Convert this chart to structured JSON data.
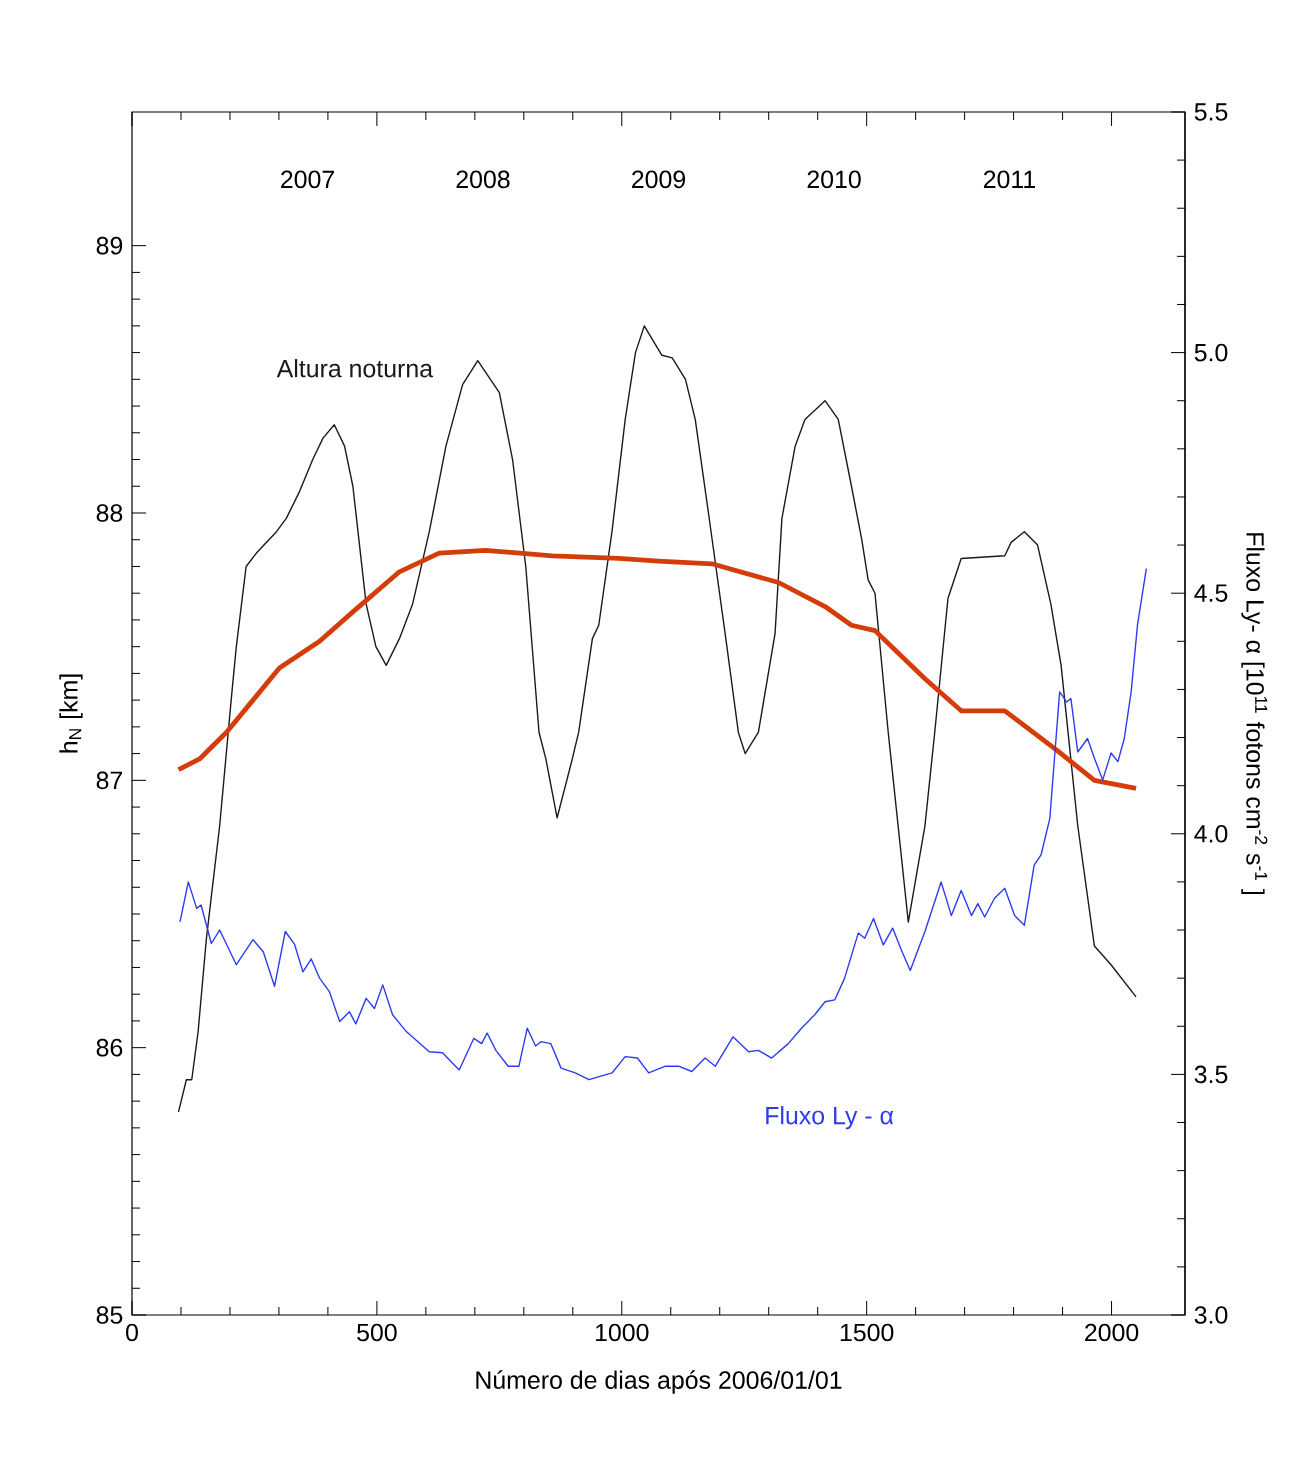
{
  "chart_data": {
    "type": "line",
    "xlabel": "Número de dias após 2006/01/01",
    "ylabel": "h$_{N}$ [km]",
    "y2label": "Fluxo Ly- α [10$^{11}$ fotons cm$^{-2}$ s$^{-1}$ ]",
    "xlim": [
      0,
      2150
    ],
    "xticks": [
      0,
      500,
      1000,
      1500,
      2000
    ],
    "ylim": [
      85,
      89.5
    ],
    "yticks": [
      85,
      86,
      87,
      88,
      89
    ],
    "y2lim": [
      3,
      5.5
    ],
    "y2ticks": [
      {
        "value": 3,
        "label": "3.0"
      },
      {
        "value": 3.5,
        "label": "3.5"
      },
      {
        "value": 4,
        "label": "4.0"
      },
      {
        "value": 4.5,
        "label": "4.5"
      },
      {
        "value": 5,
        "label": "5.0"
      },
      {
        "value": 5.5,
        "label": "5.5"
      }
    ],
    "grid": false,
    "annotations": [
      "2007",
      "2008",
      "2009",
      "2010",
      "2011"
    ],
    "series": [
      {
        "name": "Altura noturna",
        "color": "#1a1a1a",
        "x": [
          95,
          111,
          122,
          135,
          152,
          179,
          204,
          213,
          233,
          254,
          295,
          315,
          342,
          369,
          390,
          413,
          434,
          451,
          478,
          498,
          519,
          546,
          573,
          607,
          641,
          675,
          706,
          750,
          777,
          804,
          831,
          845,
          868,
          899,
          912,
          940,
          953,
          980,
          1007,
          1028,
          1046,
          1062,
          1082,
          1103,
          1130,
          1150,
          1177,
          1211,
          1238,
          1252,
          1279,
          1313,
          1327,
          1354,
          1374,
          1415,
          1442,
          1469,
          1490,
          1503,
          1517,
          1544,
          1585,
          1619,
          1639,
          1666,
          1693,
          1782,
          1795,
          1822,
          1849,
          1876,
          1897,
          1931,
          1965,
          1999,
          2050
        ],
        "values": [
          85.76,
          85.88,
          85.88,
          86.06,
          86.41,
          86.83,
          87.33,
          87.5,
          87.8,
          87.85,
          87.93,
          87.98,
          88.08,
          88.2,
          88.28,
          88.33,
          88.25,
          88.1,
          87.66,
          87.5,
          87.43,
          87.53,
          87.66,
          87.93,
          88.25,
          88.48,
          88.57,
          88.45,
          88.2,
          87.8,
          87.18,
          87.08,
          86.86,
          87.08,
          87.18,
          87.53,
          87.58,
          87.93,
          88.35,
          88.6,
          88.7,
          88.65,
          88.59,
          88.58,
          88.5,
          88.35,
          88.0,
          87.55,
          87.18,
          87.1,
          87.18,
          87.55,
          87.98,
          88.25,
          88.35,
          88.42,
          88.35,
          88.1,
          87.9,
          87.75,
          87.7,
          87.18,
          86.47,
          86.83,
          87.18,
          87.68,
          87.83,
          87.84,
          87.89,
          87.93,
          87.88,
          87.66,
          87.43,
          86.83,
          86.38,
          86.31,
          86.19
        ]
      },
      {
        "color": "#d43c0a",
        "x": [
          95,
          138,
          193,
          247,
          301,
          383,
          451,
          546,
          627,
          722,
          858,
          994,
          1075,
          1184,
          1320,
          1415,
          1469,
          1517,
          1619,
          1693,
          1782,
          1890,
          1965,
          2050
        ],
        "values": [
          87.04,
          87.08,
          87.18,
          87.3,
          87.42,
          87.52,
          87.63,
          87.78,
          87.85,
          87.86,
          87.84,
          87.83,
          87.82,
          87.81,
          87.74,
          87.65,
          87.58,
          87.56,
          87.38,
          87.26,
          87.26,
          87.11,
          87.0,
          86.97
        ]
      },
      {
        "name": "Fluxo Ly - α",
        "color": "#2d3cf0",
        "axis": "y2",
        "x": [
          98,
          115,
          132,
          141,
          162,
          179,
          213,
          247,
          268,
          291,
          313,
          332,
          349,
          366,
          383,
          403,
          424,
          444,
          457,
          478,
          495,
          512,
          532,
          560,
          607,
          634,
          668,
          698,
          714,
          725,
          743,
          768,
          790,
          807,
          824,
          835,
          855,
          876,
          905,
          933,
          980,
          1007,
          1032,
          1055,
          1089,
          1116,
          1143,
          1170,
          1191,
          1227,
          1259,
          1279,
          1306,
          1340,
          1367,
          1394,
          1415,
          1435,
          1455,
          1483,
          1496,
          1514,
          1534,
          1553,
          1571,
          1589,
          1619,
          1652,
          1673,
          1693,
          1714,
          1727,
          1741,
          1761,
          1782,
          1802,
          1822,
          1842,
          1856,
          1874,
          1894,
          1908,
          1917,
          1931,
          1951,
          1965,
          1982,
          1999,
          2013,
          2026,
          2040,
          2053,
          2071
        ],
        "values": [
          3.817,
          3.9,
          3.845,
          3.852,
          3.772,
          3.8,
          3.728,
          3.78,
          3.755,
          3.683,
          3.797,
          3.77,
          3.713,
          3.74,
          3.7,
          3.672,
          3.61,
          3.63,
          3.605,
          3.658,
          3.637,
          3.686,
          3.624,
          3.589,
          3.547,
          3.545,
          3.509,
          3.575,
          3.564,
          3.586,
          3.55,
          3.517,
          3.517,
          3.596,
          3.559,
          3.568,
          3.564,
          3.513,
          3.503,
          3.489,
          3.503,
          3.537,
          3.534,
          3.503,
          3.517,
          3.517,
          3.506,
          3.534,
          3.517,
          3.578,
          3.547,
          3.55,
          3.534,
          3.564,
          3.596,
          3.624,
          3.651,
          3.655,
          3.7,
          3.794,
          3.783,
          3.824,
          3.769,
          3.804,
          3.758,
          3.716,
          3.797,
          3.9,
          3.83,
          3.882,
          3.83,
          3.855,
          3.827,
          3.866,
          3.887,
          3.83,
          3.81,
          3.935,
          3.956,
          4.032,
          4.295,
          4.274,
          4.281,
          4.17,
          4.198,
          4.157,
          4.112,
          4.168,
          4.15,
          4.198,
          4.295,
          4.434,
          4.551
        ]
      }
    ]
  }
}
